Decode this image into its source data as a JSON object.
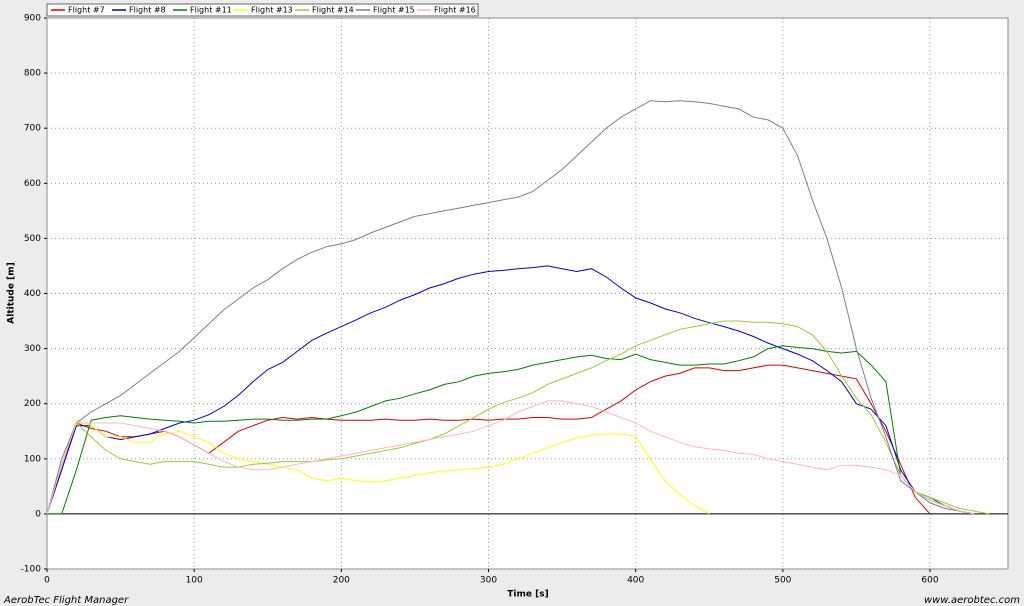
{
  "chart_data": {
    "type": "line",
    "x_label": "Time [s]",
    "y_label": "Altitude [m]",
    "x": [
      0,
      10,
      20,
      30,
      40,
      50,
      60,
      70,
      80,
      90,
      100,
      110,
      120,
      130,
      140,
      150,
      160,
      170,
      180,
      190,
      200,
      210,
      220,
      230,
      240,
      250,
      260,
      270,
      280,
      290,
      300,
      310,
      320,
      330,
      340,
      350,
      360,
      370,
      380,
      390,
      400,
      410,
      420,
      430,
      440,
      450,
      460,
      470,
      480,
      490,
      500,
      510,
      520,
      530,
      540,
      550,
      560,
      570,
      580,
      590,
      600,
      610,
      620,
      630,
      640,
      650
    ],
    "series": [
      {
        "name": "Flight #7",
        "color": "#e00000",
        "values": [
          0,
          80,
          165,
          155,
          150,
          140,
          140,
          145,
          150,
          140,
          125,
          110,
          130,
          150,
          160,
          170,
          175,
          172,
          175,
          172,
          170,
          170,
          170,
          172,
          170,
          170,
          172,
          170,
          170,
          172,
          170,
          172,
          172,
          175,
          175,
          172,
          172,
          175,
          190,
          205,
          225,
          240,
          250,
          255,
          265,
          265,
          260,
          260,
          265,
          270,
          270,
          265,
          260,
          255,
          250,
          245,
          200,
          150,
          90,
          30,
          0,
          null,
          null,
          null,
          null,
          null
        ]
      },
      {
        "name": "Flight #8",
        "color": "#0000e0",
        "values": [
          0,
          80,
          160,
          160,
          140,
          135,
          140,
          145,
          155,
          165,
          170,
          180,
          195,
          215,
          240,
          262,
          275,
          295,
          315,
          328,
          340,
          352,
          365,
          375,
          388,
          398,
          410,
          418,
          428,
          435,
          440,
          442,
          445,
          447,
          450,
          445,
          440,
          445,
          430,
          410,
          392,
          383,
          372,
          365,
          355,
          347,
          340,
          332,
          322,
          310,
          300,
          290,
          278,
          260,
          240,
          200,
          190,
          160,
          80,
          40,
          25,
          15,
          5,
          0,
          null,
          null
        ]
      },
      {
        "name": "Flight #11",
        "color": "#008000",
        "values": [
          0,
          0,
          80,
          170,
          175,
          178,
          175,
          172,
          170,
          168,
          165,
          168,
          168,
          170,
          172,
          172,
          170,
          170,
          172,
          172,
          178,
          185,
          195,
          205,
          210,
          218,
          225,
          235,
          240,
          250,
          255,
          258,
          262,
          270,
          275,
          280,
          285,
          288,
          282,
          280,
          290,
          280,
          275,
          270,
          270,
          272,
          272,
          278,
          285,
          300,
          305,
          302,
          300,
          295,
          292,
          295,
          270,
          240,
          70,
          40,
          30,
          15,
          5,
          0,
          null,
          null
        ]
      },
      {
        "name": "Flight #13",
        "color": "#ffff00",
        "values": [
          0,
          90,
          170,
          160,
          140,
          140,
          130,
          130,
          145,
          150,
          140,
          130,
          110,
          100,
          95,
          90,
          85,
          80,
          65,
          60,
          65,
          60,
          58,
          60,
          65,
          70,
          75,
          78,
          80,
          82,
          85,
          90,
          100,
          110,
          120,
          130,
          138,
          143,
          145,
          145,
          140,
          100,
          60,
          35,
          15,
          0,
          null,
          null,
          null,
          null,
          null,
          null,
          null,
          null,
          null,
          null,
          null,
          null,
          null,
          null,
          null,
          null,
          null,
          null,
          null,
          null
        ]
      },
      {
        "name": "Flight #14",
        "color": "#9acd32",
        "values": [
          0,
          90,
          165,
          140,
          115,
          100,
          95,
          90,
          95,
          95,
          95,
          90,
          85,
          85,
          90,
          92,
          95,
          95,
          95,
          98,
          100,
          105,
          110,
          115,
          120,
          128,
          135,
          145,
          160,
          175,
          190,
          202,
          210,
          220,
          235,
          245,
          255,
          265,
          278,
          290,
          305,
          315,
          325,
          335,
          340,
          345,
          350,
          350,
          348,
          348,
          345,
          340,
          325,
          295,
          250,
          210,
          180,
          130,
          70,
          40,
          30,
          20,
          10,
          5,
          0,
          null
        ]
      },
      {
        "name": "Flight #15",
        "color": "#808080",
        "values": [
          0,
          100,
          165,
          185,
          200,
          215,
          235,
          255,
          275,
          295,
          320,
          345,
          370,
          390,
          410,
          425,
          445,
          462,
          475,
          485,
          490,
          498,
          510,
          520,
          530,
          540,
          545,
          550,
          555,
          560,
          565,
          570,
          575,
          585,
          605,
          625,
          650,
          675,
          700,
          720,
          735,
          750,
          748,
          750,
          748,
          745,
          740,
          735,
          720,
          715,
          700,
          650,
          570,
          500,
          410,
          300,
          210,
          140,
          60,
          40,
          20,
          10,
          5,
          0,
          null,
          null
        ]
      },
      {
        "name": "Flight #16",
        "color": "#ffb6c1",
        "values": [
          0,
          90,
          165,
          165,
          165,
          165,
          160,
          155,
          150,
          140,
          125,
          110,
          95,
          85,
          80,
          80,
          85,
          90,
          95,
          100,
          105,
          110,
          115,
          120,
          125,
          130,
          135,
          140,
          145,
          150,
          160,
          170,
          185,
          195,
          205,
          205,
          200,
          195,
          185,
          175,
          165,
          150,
          140,
          130,
          122,
          118,
          115,
          110,
          108,
          100,
          95,
          90,
          85,
          80,
          88,
          88,
          85,
          80,
          70,
          40,
          25,
          15,
          5,
          0,
          null,
          null
        ]
      }
    ],
    "xlim": [
      0,
      653
    ],
    "xticks": [
      0,
      100,
      200,
      300,
      400,
      500,
      600
    ],
    "ylim": [
      -100,
      900
    ],
    "yticks": [
      -100,
      0,
      100,
      200,
      300,
      400,
      500,
      600,
      700,
      800,
      900
    ],
    "grid": true,
    "legend": "top-left"
  },
  "footer": {
    "left": "AerobTec Flight Manager",
    "right": "www.aerobtec.com"
  }
}
